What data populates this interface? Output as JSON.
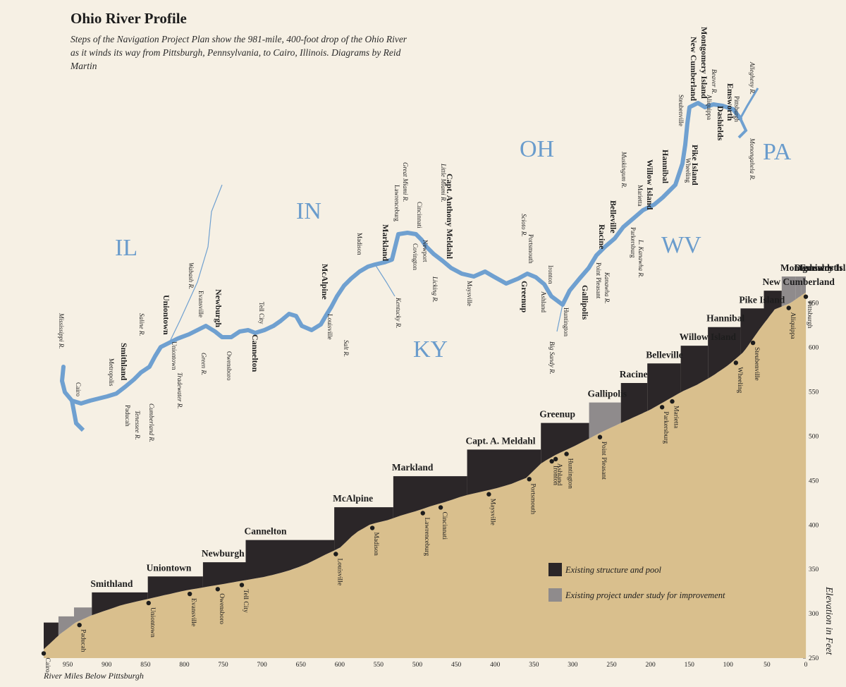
{
  "title": "Ohio River Profile",
  "subtitle": "Steps of the Navigation Project Plan show the 981-mile, 400-foot drop of the Ohio River as it winds its way from Pittsburgh, Pennsylvania, to Cairo, Illinois. Diagrams by Reid Martin",
  "colors": {
    "background": "#f6f0e4",
    "river": "#6fa0d0",
    "state_label": "#6a9ccc",
    "ground": "#d9bf8d",
    "pool": "#2b2628",
    "study": "#8f8b8c",
    "text": "#1d1d1d"
  },
  "map": {
    "states": [
      "IL",
      "IN",
      "OH",
      "PA",
      "KY",
      "WV"
    ],
    "dam_labels": [
      "Emsworth",
      "Dashields",
      "Montgomery Island",
      "New Cumberland",
      "Pike Island",
      "Hannibal",
      "Willow Island",
      "Belleville",
      "Racine",
      "Gallipolis",
      "Greenup",
      "Capt. Anthony Meldahl",
      "Markland",
      "McAlpine",
      "Cannelton",
      "Newburgh",
      "Uniontown",
      "Smithland"
    ],
    "cities": [
      "Pittsburgh",
      "Aliquippa",
      "Steubenville",
      "Wheeling",
      "Marietta",
      "Parkersburg",
      "Point Pleasant",
      "Huntington",
      "Ashland",
      "Ironton",
      "Portsmouth",
      "Maysville",
      "Covington",
      "Newport",
      "Cincinnati",
      "Lawrenceburg",
      "Madison",
      "Louisville",
      "Tell City",
      "Owensboro",
      "Evansville",
      "Uniontown",
      "Metropolis",
      "Paducah",
      "Cairo"
    ],
    "rivers": [
      "Allegheny R.",
      "Monongahela R.",
      "Beaver R.",
      "Muskingum R.",
      "L. Kanawha R.",
      "Kanawha R.",
      "Scioto R.",
      "Big Sandy R.",
      "Little Miami R.",
      "Great Miami R.",
      "Licking R.",
      "Kentucky R.",
      "Salt R.",
      "Wabash R.",
      "Green R.",
      "Saline R.",
      "Tradewater R.",
      "Cumberland R.",
      "Tenessee R.",
      "Mississippi R."
    ]
  },
  "chart_data": {
    "type": "area",
    "xlabel": "River Miles Below Pittsburgh",
    "ylabel": "Elevation in Feet",
    "xlim": [
      981,
      0
    ],
    "ylim": [
      250,
      680
    ],
    "x_ticks": [
      950,
      900,
      850,
      800,
      750,
      700,
      650,
      600,
      550,
      500,
      450,
      400,
      350,
      300,
      250,
      200,
      150,
      100,
      50,
      0
    ],
    "y_ticks": [
      250,
      300,
      350,
      400,
      450,
      500,
      550,
      600,
      650
    ],
    "ground_profile": {
      "x": [
        981,
        960,
        940,
        920,
        900,
        880,
        860,
        840,
        820,
        800,
        780,
        760,
        740,
        720,
        700,
        680,
        660,
        640,
        620,
        600,
        580,
        560,
        540,
        520,
        500,
        480,
        460,
        440,
        420,
        400,
        380,
        360,
        340,
        320,
        300,
        280,
        260,
        240,
        220,
        200,
        180,
        160,
        140,
        120,
        100,
        80,
        60,
        40,
        20,
        0
      ],
      "y": [
        260,
        277,
        290,
        298,
        304,
        310,
        314,
        318,
        322,
        326,
        329,
        332,
        335,
        338,
        341,
        345,
        350,
        357,
        366,
        374,
        391,
        401,
        405,
        411,
        416,
        422,
        427,
        433,
        437,
        441,
        446,
        453,
        470,
        480,
        488,
        497,
        506,
        514,
        522,
        530,
        540,
        550,
        558,
        568,
        580,
        595,
        620,
        643,
        650,
        662
      ]
    },
    "pools": [
      {
        "name": "Smithland",
        "from_mile": 919,
        "to_mile": 847,
        "pool": 324,
        "status": "existing"
      },
      {
        "name": "Uniontown",
        "from_mile": 847,
        "to_mile": 776,
        "pool": 342,
        "status": "existing"
      },
      {
        "name": "Newburgh",
        "from_mile": 776,
        "to_mile": 721,
        "pool": 358,
        "status": "existing"
      },
      {
        "name": "Cannelton",
        "from_mile": 721,
        "to_mile": 607,
        "pool": 383,
        "status": "existing"
      },
      {
        "name": "McAlpine",
        "from_mile": 607,
        "to_mile": 531,
        "pool": 420,
        "status": "existing"
      },
      {
        "name": "Markland",
        "from_mile": 531,
        "to_mile": 436,
        "pool": 455,
        "status": "existing"
      },
      {
        "name": "Capt. A. Meldahl",
        "from_mile": 436,
        "to_mile": 341,
        "pool": 485,
        "status": "existing"
      },
      {
        "name": "Greenup",
        "from_mile": 341,
        "to_mile": 279,
        "pool": 515,
        "status": "existing"
      },
      {
        "name": "Gallipolis",
        "from_mile": 279,
        "to_mile": 238,
        "pool": 538,
        "status": "study"
      },
      {
        "name": "Racine",
        "from_mile": 238,
        "to_mile": 204,
        "pool": 560,
        "status": "existing"
      },
      {
        "name": "Belleville",
        "from_mile": 204,
        "to_mile": 161,
        "pool": 582,
        "status": "existing"
      },
      {
        "name": "Willow Island",
        "from_mile": 161,
        "to_mile": 126,
        "pool": 602,
        "status": "existing"
      },
      {
        "name": "Hannibal",
        "from_mile": 126,
        "to_mile": 84,
        "pool": 623,
        "status": "existing"
      },
      {
        "name": "Pike Island",
        "from_mile": 84,
        "to_mile": 54,
        "pool": 644,
        "status": "existing"
      },
      {
        "name": "New Cumberland",
        "from_mile": 54,
        "to_mile": 31,
        "pool": 664,
        "status": "existing"
      },
      {
        "name": "Montgomery Island",
        "from_mile": 31,
        "to_mile": 13,
        "pool": 682,
        "status": "study"
      },
      {
        "name": "Dashields",
        "from_mile": 13,
        "to_mile": 6,
        "pool": 692,
        "status": "study"
      },
      {
        "name": "Emsworth",
        "from_mile": 6,
        "to_mile": 0,
        "pool": 710,
        "status": "study"
      }
    ],
    "lower_steps": [
      {
        "from_mile": 981,
        "to_mile": 962,
        "pool": 290,
        "status": "existing"
      },
      {
        "from_mile": 962,
        "to_mile": 942,
        "pool": 297,
        "status": "study"
      },
      {
        "from_mile": 942,
        "to_mile": 919,
        "pool": 307,
        "status": "study"
      }
    ],
    "cities": [
      {
        "name": "Cairo",
        "mile": 981
      },
      {
        "name": "Paducah",
        "mile": 935
      },
      {
        "name": "Uniontown",
        "mile": 846
      },
      {
        "name": "Evansville",
        "mile": 793
      },
      {
        "name": "Owensboro",
        "mile": 757
      },
      {
        "name": "Tell City",
        "mile": 726
      },
      {
        "name": "Louisville",
        "mile": 605
      },
      {
        "name": "Madison",
        "mile": 558
      },
      {
        "name": "Lawrenceburg",
        "mile": 493
      },
      {
        "name": "Cincinnati",
        "mile": 470
      },
      {
        "name": "Maysville",
        "mile": 408
      },
      {
        "name": "Portsmouth",
        "mile": 356
      },
      {
        "name": "Ironton",
        "mile": 327
      },
      {
        "name": "Ashland",
        "mile": 322
      },
      {
        "name": "Huntington",
        "mile": 308
      },
      {
        "name": "Point Pleasant",
        "mile": 265
      },
      {
        "name": "Marietta",
        "mile": 172
      },
      {
        "name": "Parkersburg",
        "mile": 185
      },
      {
        "name": "Wheeling",
        "mile": 90
      },
      {
        "name": "Steubenville",
        "mile": 68
      },
      {
        "name": "Aliquippa",
        "mile": 22
      },
      {
        "name": "Pittsburgh",
        "mile": 0
      }
    ],
    "legend": [
      {
        "label": "Existing structure and pool",
        "status": "existing"
      },
      {
        "label": "Existing project under study for improvement",
        "status": "study"
      }
    ]
  }
}
